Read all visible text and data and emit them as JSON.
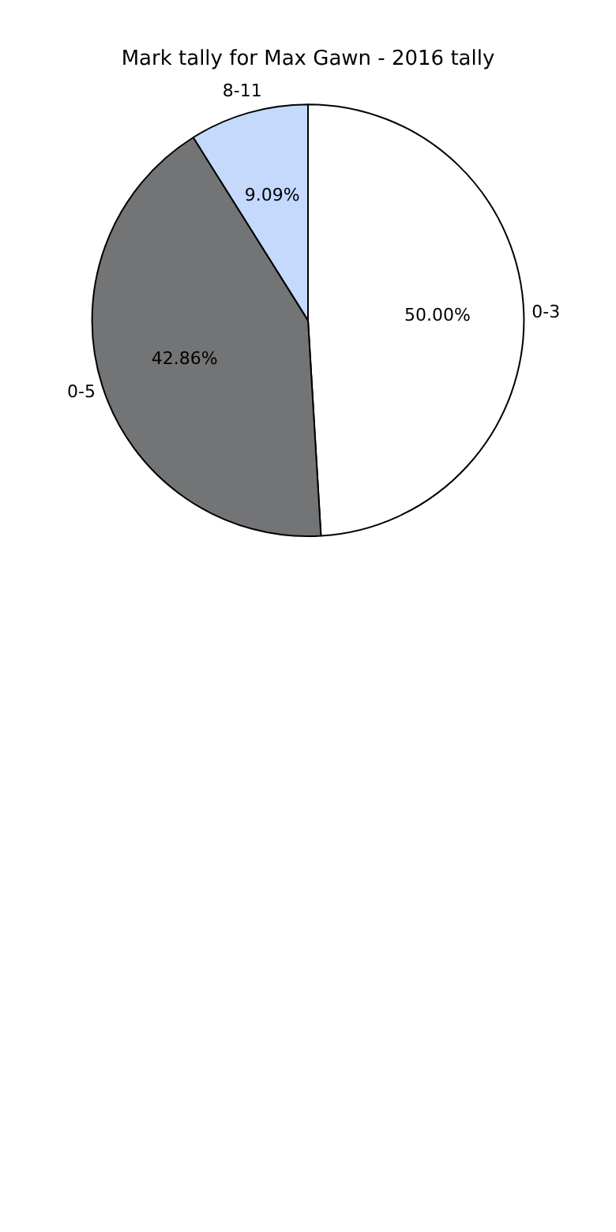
{
  "chart_data": {
    "type": "pie",
    "title": "Mark tally for Max Gawn - 2016 tally",
    "categories": [
      "0-3",
      "0-5",
      "8-11"
    ],
    "values": [
      50.0,
      42.86,
      9.09
    ],
    "value_labels": [
      "50.00%",
      "42.86%",
      "9.09%"
    ],
    "colors": [
      "#ffffff",
      "#737476",
      "#c5d9fd"
    ],
    "legend": false
  }
}
